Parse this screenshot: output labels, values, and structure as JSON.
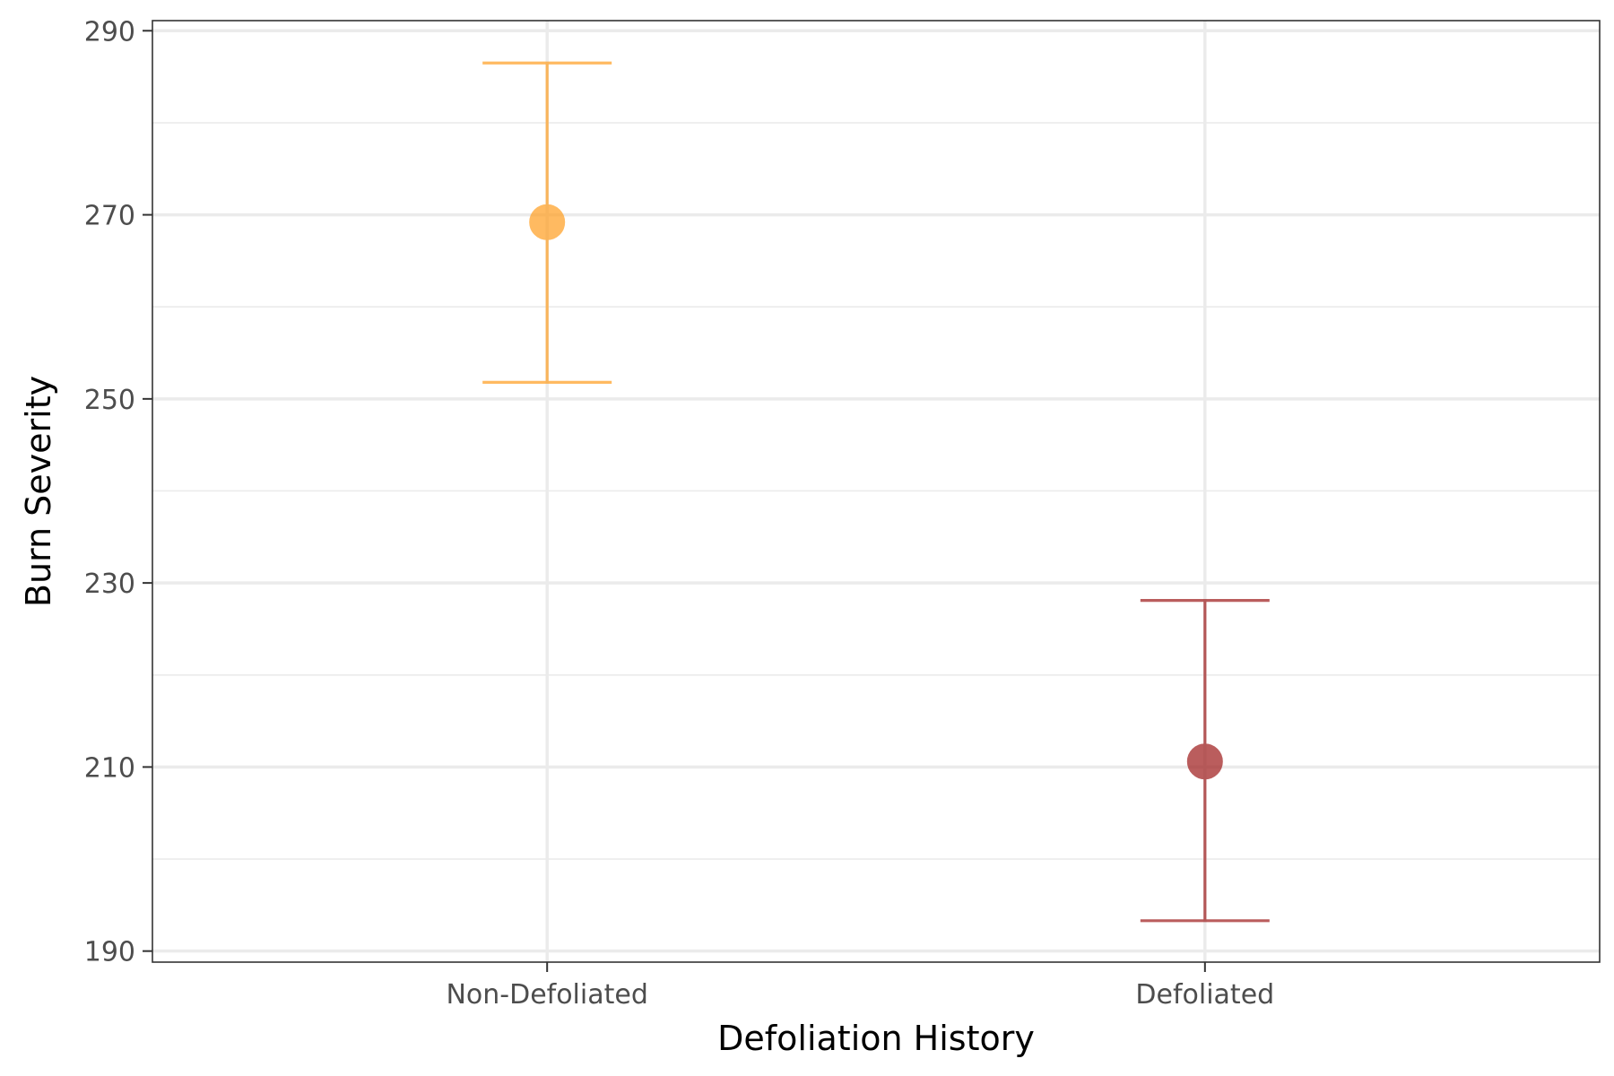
{
  "chart_data": {
    "type": "errorbar",
    "xlabel": "Defoliation History",
    "ylabel": "Burn Severity",
    "categories": [
      "Non-Defoliated",
      "Defoliated"
    ],
    "points": [
      {
        "category": "Non-Defoliated",
        "mean": 269.2,
        "lower": 251.8,
        "upper": 286.5,
        "color": "#FF9E1F"
      },
      {
        "category": "Defoliated",
        "mean": 210.6,
        "lower": 193.3,
        "upper": 228.1,
        "color": "#9E1A1A"
      }
    ],
    "ylim": [
      188.8,
      291.1
    ],
    "yticks": [
      190,
      210,
      230,
      250,
      270,
      290
    ],
    "grid": true,
    "legend": "none"
  }
}
